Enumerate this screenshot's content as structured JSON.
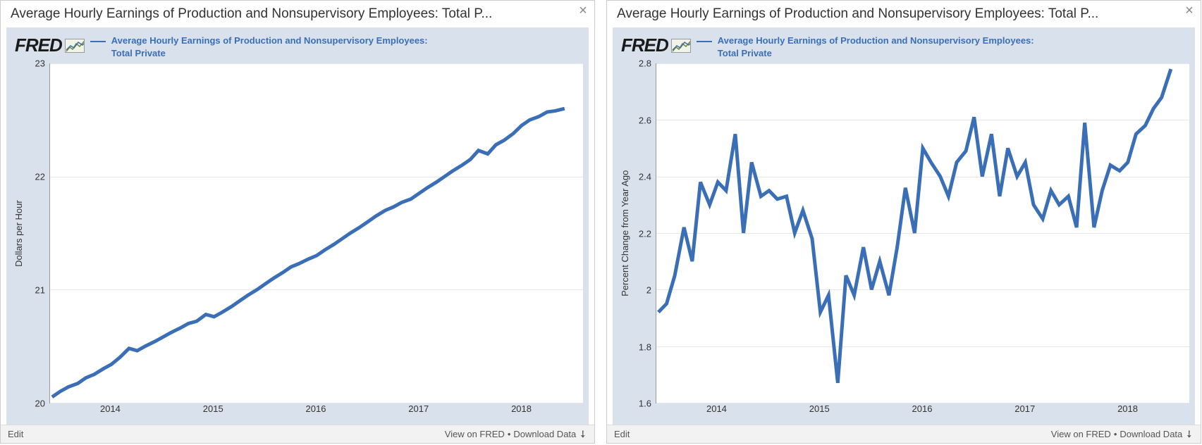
{
  "panels": [
    {
      "title": "Average Hourly Earnings of Production and Nonsupervisory Employees: Total P...",
      "logo_text": "FRED",
      "legend_label": "Average Hourly Earnings of Production and Nonsupervisory Employees: Total Private",
      "chart": {
        "type": "line",
        "ylabel": "Dollars per Hour",
        "line_color": "#3a6fb7",
        "line_width": 2,
        "background_color": "#ffffff",
        "frame_color": "#d9e2ec",
        "grid_color": "#e6e6e6",
        "ylim": [
          20,
          23
        ],
        "yticks": [
          20,
          21,
          22,
          23
        ],
        "xlim": [
          2013.4,
          2018.6
        ],
        "xticks": [
          2014,
          2015,
          2016,
          2017,
          2018
        ],
        "x": [
          2013.42,
          2013.5,
          2013.58,
          2013.67,
          2013.75,
          2013.83,
          2013.92,
          2014.0,
          2014.08,
          2014.17,
          2014.25,
          2014.33,
          2014.42,
          2014.5,
          2014.58,
          2014.67,
          2014.75,
          2014.83,
          2014.92,
          2015.0,
          2015.08,
          2015.17,
          2015.25,
          2015.33,
          2015.42,
          2015.5,
          2015.58,
          2015.67,
          2015.75,
          2015.83,
          2015.92,
          2016.0,
          2016.08,
          2016.17,
          2016.25,
          2016.33,
          2016.42,
          2016.5,
          2016.58,
          2016.67,
          2016.75,
          2016.83,
          2016.92,
          2017.0,
          2017.08,
          2017.17,
          2017.25,
          2017.33,
          2017.42,
          2017.5,
          2017.58,
          2017.67,
          2017.75,
          2017.83,
          2017.92,
          2018.0,
          2018.08,
          2018.17,
          2018.25,
          2018.33,
          2018.42
        ],
        "y": [
          20.05,
          20.1,
          20.14,
          20.17,
          20.22,
          20.25,
          20.3,
          20.34,
          20.4,
          20.48,
          20.46,
          20.5,
          20.54,
          20.58,
          20.62,
          20.66,
          20.7,
          20.72,
          20.78,
          20.76,
          20.8,
          20.85,
          20.9,
          20.95,
          21.0,
          21.05,
          21.1,
          21.15,
          21.2,
          21.23,
          21.27,
          21.3,
          21.35,
          21.4,
          21.45,
          21.5,
          21.55,
          21.6,
          21.65,
          21.7,
          21.73,
          21.77,
          21.8,
          21.85,
          21.9,
          21.95,
          22.0,
          22.05,
          22.1,
          22.15,
          22.23,
          22.2,
          22.28,
          22.32,
          22.38,
          22.45,
          22.5,
          22.53,
          22.57,
          22.58,
          22.6
        ]
      },
      "footer": {
        "edit": "Edit",
        "view": "View on FRED",
        "download": "Download Data"
      }
    },
    {
      "title": "Average Hourly Earnings of Production and Nonsupervisory Employees: Total P...",
      "logo_text": "FRED",
      "legend_label": "Average Hourly Earnings of Production and Nonsupervisory Employees: Total Private",
      "chart": {
        "type": "line",
        "ylabel": "Percent Change from Year Ago",
        "line_color": "#3a6fb7",
        "line_width": 2,
        "background_color": "#ffffff",
        "frame_color": "#d9e2ec",
        "grid_color": "#e6e6e6",
        "ylim": [
          1.6,
          2.8
        ],
        "yticks": [
          1.6,
          1.8,
          2.0,
          2.2,
          2.4,
          2.6,
          2.8
        ],
        "xlim": [
          2013.4,
          2018.6
        ],
        "xticks": [
          2014,
          2015,
          2016,
          2017,
          2018
        ],
        "x": [
          2013.42,
          2013.5,
          2013.58,
          2013.67,
          2013.75,
          2013.83,
          2013.92,
          2014.0,
          2014.08,
          2014.17,
          2014.25,
          2014.33,
          2014.42,
          2014.5,
          2014.58,
          2014.67,
          2014.75,
          2014.83,
          2014.92,
          2015.0,
          2015.08,
          2015.17,
          2015.25,
          2015.33,
          2015.42,
          2015.5,
          2015.58,
          2015.67,
          2015.75,
          2015.83,
          2015.92,
          2016.0,
          2016.08,
          2016.17,
          2016.25,
          2016.33,
          2016.42,
          2016.5,
          2016.58,
          2016.67,
          2016.75,
          2016.83,
          2016.92,
          2017.0,
          2017.08,
          2017.17,
          2017.25,
          2017.33,
          2017.42,
          2017.5,
          2017.58,
          2017.67,
          2017.75,
          2017.83,
          2017.92,
          2018.0,
          2018.08,
          2018.17,
          2018.25,
          2018.33,
          2018.42
        ],
        "y": [
          1.92,
          1.95,
          2.05,
          2.22,
          2.1,
          2.38,
          2.3,
          2.38,
          2.35,
          2.55,
          2.2,
          2.45,
          2.33,
          2.35,
          2.32,
          2.33,
          2.2,
          2.28,
          2.18,
          1.92,
          1.98,
          1.67,
          2.05,
          1.98,
          2.15,
          2.0,
          2.1,
          1.98,
          2.15,
          2.36,
          2.2,
          2.5,
          2.45,
          2.4,
          2.33,
          2.45,
          2.49,
          2.61,
          2.4,
          2.55,
          2.33,
          2.5,
          2.4,
          2.45,
          2.3,
          2.25,
          2.35,
          2.3,
          2.33,
          2.22,
          2.59,
          2.22,
          2.35,
          2.44,
          2.42,
          2.45,
          2.55,
          2.58,
          2.64,
          2.68,
          2.78
        ]
      },
      "footer": {
        "edit": "Edit",
        "view": "View on FRED",
        "download": "Download Data"
      }
    }
  ]
}
